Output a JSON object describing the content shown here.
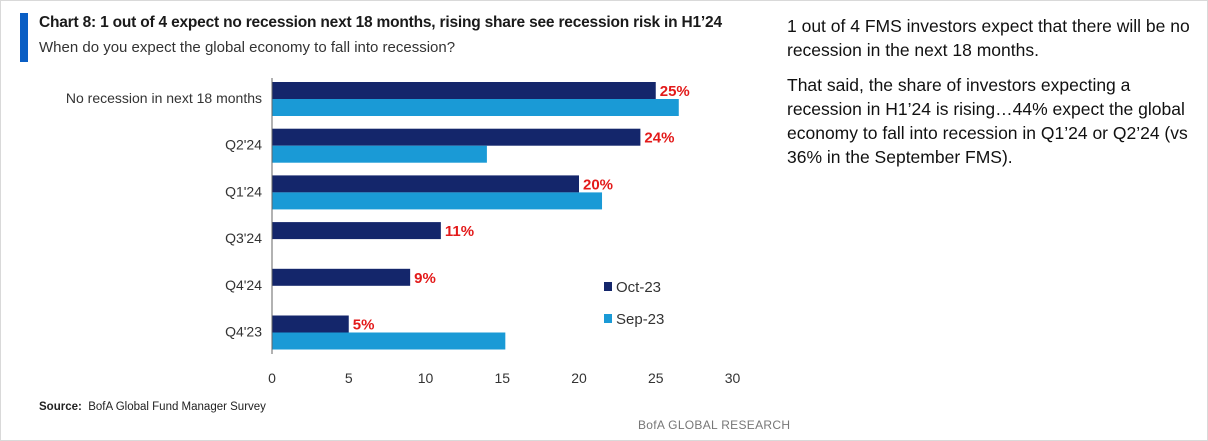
{
  "header": {
    "title": "Chart 8:  1 out of 4 expect no recession next 18 months, rising share see recession risk in H1’24",
    "subtitle": "When do you expect the global economy to fall into recession?"
  },
  "source": {
    "label": "Source:",
    "text": "BofA Global Fund Manager Survey"
  },
  "brand": "BofA GLOBAL RESEARCH",
  "commentary": {
    "paragraph_1": "1 out of 4 FMS investors expect that there will be no recession in the next 18 months.",
    "paragraph_2": "That said, the share of investors expecting a recession in H1’24 is rising…44% expect the global economy to fall into recession in Q1’24 or Q2’24 (vs 36% in the September FMS)."
  },
  "chart_data": {
    "type": "bar",
    "orientation": "horizontal",
    "categories": [
      "No recession in next 18 months",
      "Q2'24",
      "Q1'24",
      "Q3'24",
      "Q4'24",
      "Q4'23"
    ],
    "series": [
      {
        "name": "Oct-23",
        "color": "#14266b",
        "values": [
          25,
          24,
          20,
          11,
          9,
          5
        ]
      },
      {
        "name": "Sep-23",
        "color": "#1a9ad6",
        "values": [
          26.5,
          14,
          21.5,
          null,
          null,
          15.2
        ]
      }
    ],
    "data_labels": [
      "25%",
      "24%",
      "20%",
      "11%",
      "9%",
      "5%"
    ],
    "data_label_color": "#e31a1a",
    "x_ticks": [
      "0",
      "5",
      "10",
      "15",
      "20",
      "25",
      "30"
    ],
    "xlim": [
      0,
      30
    ],
    "legend_position": "lower-right",
    "grid": false
  }
}
